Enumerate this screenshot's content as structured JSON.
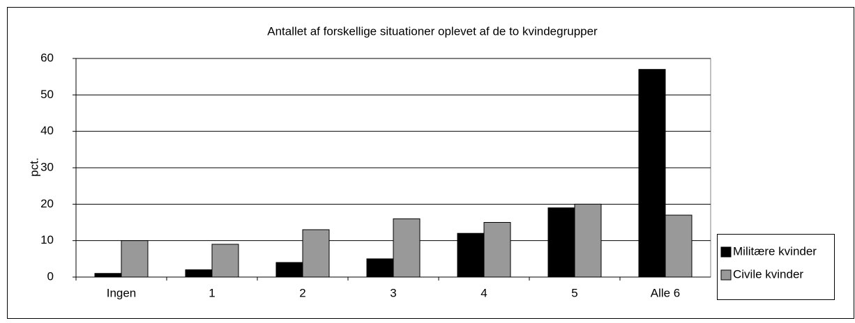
{
  "chart_data": {
    "type": "bar",
    "title": "Antallet af forskellige situationer oplevet af de to kvindegrupper",
    "y_label": "pct.",
    "categories": [
      "Ingen",
      "1",
      "2",
      "3",
      "4",
      "5",
      "Alle 6"
    ],
    "series": [
      {
        "name": "Militære kvinder",
        "color": "#000000",
        "values": [
          1,
          2,
          4,
          5,
          12,
          19,
          57
        ]
      },
      {
        "name": "Civile kvinder",
        "color": "#999999",
        "values": [
          10,
          9,
          13,
          16,
          15,
          20,
          17
        ]
      }
    ],
    "ylim": [
      0,
      60
    ],
    "yticks": [
      0,
      10,
      20,
      30,
      40,
      50,
      60
    ],
    "grid": true,
    "legend": "right"
  }
}
